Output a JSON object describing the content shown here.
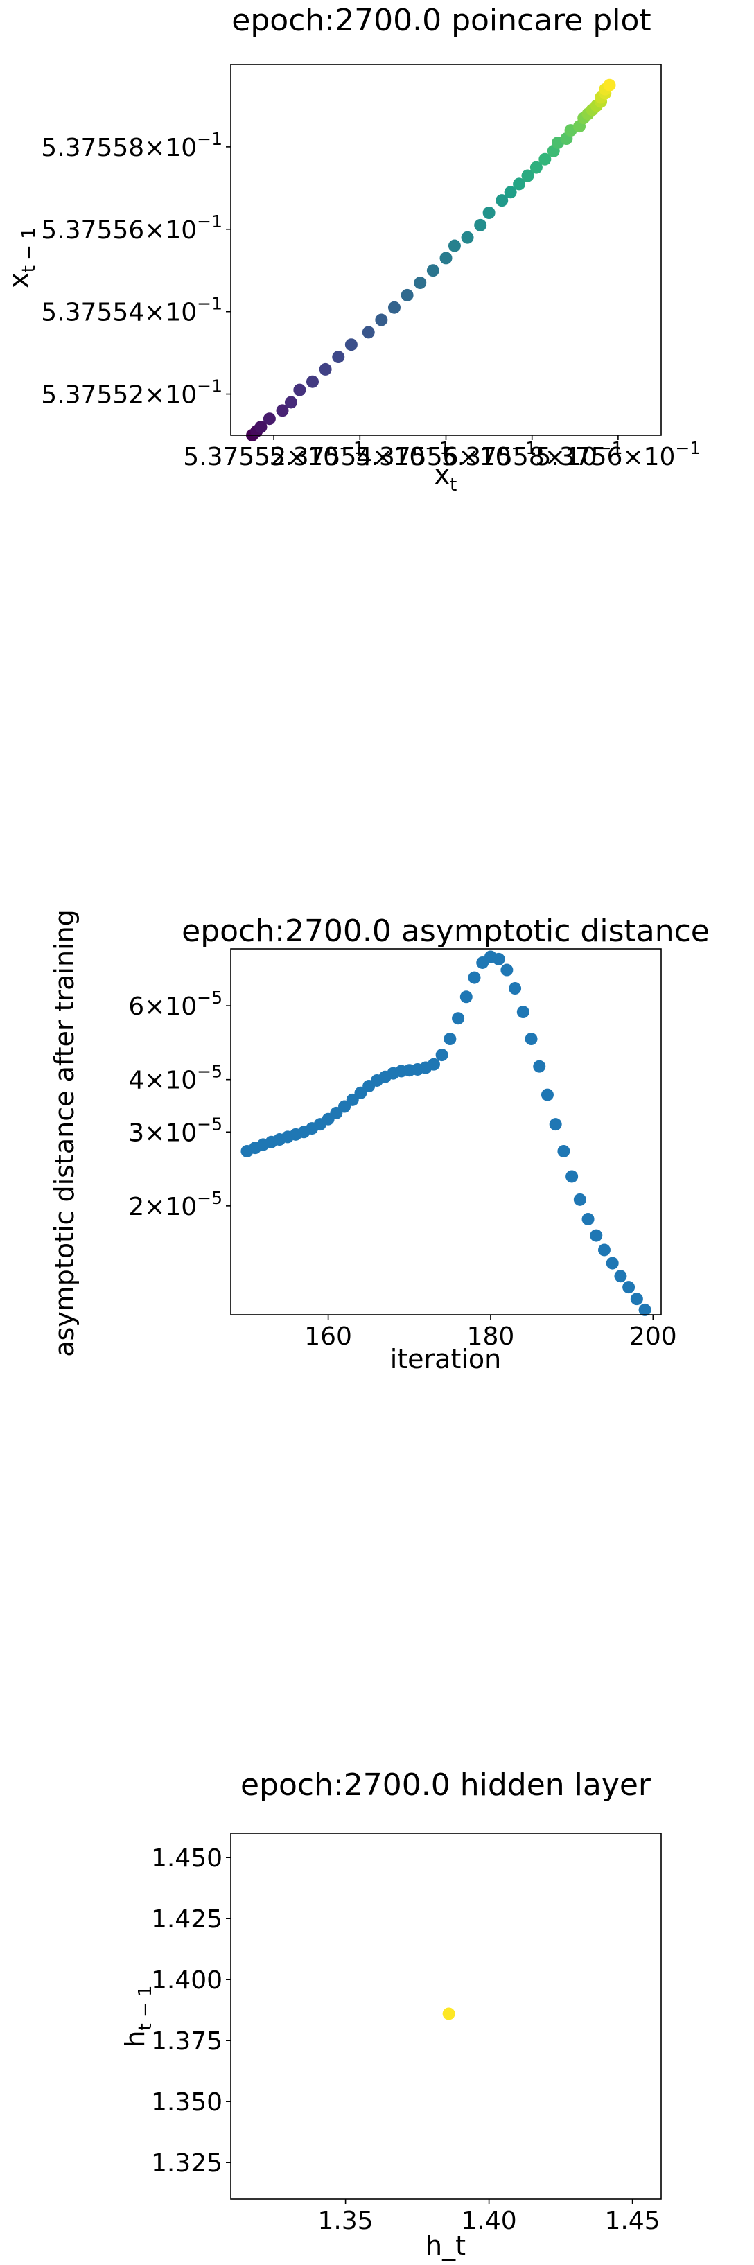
{
  "chart_data": [
    {
      "type": "scatter",
      "title": "epoch:2700.0 poincare plot",
      "xlabel": "x_t",
      "ylabel": "x_{t-1}",
      "scale": "log",
      "colormap": "viridis",
      "xlim": [
        0.537551,
        0.537561
      ],
      "ylim": [
        0.537551,
        0.53756
      ],
      "xticks": [
        {
          "value": 0.537552,
          "label": "5.37552 × 10^-1"
        },
        {
          "value": 0.537554,
          "label": "5.37554 × 10^-1"
        },
        {
          "value": 0.537556,
          "label": "5.37556 × 10^-1"
        },
        {
          "value": 0.537558,
          "label": "5.37558 × 10^-1"
        },
        {
          "value": 0.53756,
          "label": "5.3756 × 10^-1"
        }
      ],
      "yticks": [
        {
          "value": 0.537552,
          "label": "5.37552 × 10^-1"
        },
        {
          "value": 0.537554,
          "label": "5.37554 × 10^-1"
        },
        {
          "value": 0.537556,
          "label": "5.37556 × 10^-1"
        },
        {
          "value": 0.537558,
          "label": "5.37558 × 10^-1"
        }
      ],
      "x": [
        0.5375515,
        0.5375516,
        0.5375517,
        0.5375519,
        0.5375522,
        0.5375524,
        0.5375526,
        0.5375529,
        0.5375532,
        0.5375535,
        0.5375538,
        0.5375542,
        0.5375545,
        0.5375548,
        0.5375551,
        0.5375554,
        0.5375557,
        0.537556,
        0.5375562,
        0.5375565,
        0.5375568,
        0.537557,
        0.5375573,
        0.5375575,
        0.5375577,
        0.5375579,
        0.5375581,
        0.5375583,
        0.5375585,
        0.5375586,
        0.5375588,
        0.5375589,
        0.5375591,
        0.5375592,
        0.5375593,
        0.5375594,
        0.5375595,
        0.5375596,
        0.5375596,
        0.5375597,
        0.5375597,
        0.5375598
      ],
      "y": [
        0.537551,
        0.5375511,
        0.5375512,
        0.5375514,
        0.5375516,
        0.5375518,
        0.5375521,
        0.5375523,
        0.5375526,
        0.5375529,
        0.5375532,
        0.5375535,
        0.5375538,
        0.5375541,
        0.5375544,
        0.5375547,
        0.537555,
        0.5375553,
        0.5375556,
        0.5375558,
        0.5375561,
        0.5375564,
        0.5375567,
        0.5375569,
        0.5375571,
        0.5375573,
        0.5375575,
        0.5375577,
        0.5375579,
        0.5375581,
        0.5375582,
        0.5375584,
        0.5375585,
        0.5375587,
        0.5375588,
        0.5375589,
        0.537559,
        0.5375591,
        0.5375592,
        0.5375593,
        0.5375594,
        0.5375595
      ]
    },
    {
      "type": "scatter",
      "title": "epoch:2700.0 asymptotic distance",
      "xlabel": "iteration",
      "ylabel": "asymptotic distance after training",
      "yscale": "log",
      "color": "#1f77b4",
      "xlim": [
        148,
        201
      ],
      "ylim": [
        1.1e-05,
        8.2e-05
      ],
      "xticks": [
        {
          "value": 160,
          "label": "160"
        },
        {
          "value": 180,
          "label": "180"
        },
        {
          "value": 200,
          "label": "200"
        }
      ],
      "yticks": [
        {
          "value": 2e-05,
          "label": "2 × 10^-5"
        },
        {
          "value": 3e-05,
          "label": "3 × 10^-5"
        },
        {
          "value": 4e-05,
          "label": "4 × 10^-5"
        },
        {
          "value": 6e-05,
          "label": "6 × 10^-5"
        }
      ],
      "x": [
        150,
        151,
        152,
        153,
        154,
        155,
        156,
        157,
        158,
        159,
        160,
        161,
        162,
        163,
        164,
        165,
        166,
        167,
        168,
        169,
        170,
        171,
        172,
        173,
        174,
        175,
        176,
        177,
        178,
        179,
        180,
        181,
        182,
        183,
        184,
        185,
        186,
        187,
        188,
        189,
        190,
        191,
        192,
        193,
        194,
        195,
        196,
        197,
        198,
        199
      ],
      "y": [
        2.7e-05,
        2.75e-05,
        2.8e-05,
        2.84e-05,
        2.88e-05,
        2.92e-05,
        2.96e-05,
        3e-05,
        3.06e-05,
        3.13e-05,
        3.22e-05,
        3.33e-05,
        3.45e-05,
        3.58e-05,
        3.72e-05,
        3.86e-05,
        3.98e-05,
        4.06e-05,
        4.14e-05,
        4.19e-05,
        4.21e-05,
        4.23e-05,
        4.27e-05,
        4.35e-05,
        4.58e-05,
        5e-05,
        5.6e-05,
        6.3e-05,
        7e-05,
        7.6e-05,
        7.85e-05,
        7.75e-05,
        7.3e-05,
        6.6e-05,
        5.8e-05,
        5e-05,
        4.3e-05,
        3.68e-05,
        3.13e-05,
        2.7e-05,
        2.35e-05,
        2.07e-05,
        1.86e-05,
        1.7e-05,
        1.57e-05,
        1.46e-05,
        1.36e-05,
        1.28e-05,
        1.2e-05,
        1.13e-05
      ]
    },
    {
      "type": "scatter",
      "title": "epoch:2700.0 hidden layer",
      "xlabel": "h_t",
      "ylabel": "h_{t-1}",
      "color": "#fde725",
      "xlim": [
        1.31,
        1.46
      ],
      "ylim": [
        1.31,
        1.46
      ],
      "xticks": [
        {
          "value": 1.35,
          "label": "1.35"
        },
        {
          "value": 1.4,
          "label": "1.40"
        },
        {
          "value": 1.45,
          "label": "1.45"
        }
      ],
      "yticks": [
        {
          "value": 1.325,
          "label": "1.325"
        },
        {
          "value": 1.35,
          "label": "1.350"
        },
        {
          "value": 1.375,
          "label": "1.375"
        },
        {
          "value": 1.4,
          "label": "1.400"
        },
        {
          "value": 1.425,
          "label": "1.425"
        },
        {
          "value": 1.45,
          "label": "1.450"
        }
      ],
      "x": [
        1.386
      ],
      "y": [
        1.386
      ]
    }
  ]
}
